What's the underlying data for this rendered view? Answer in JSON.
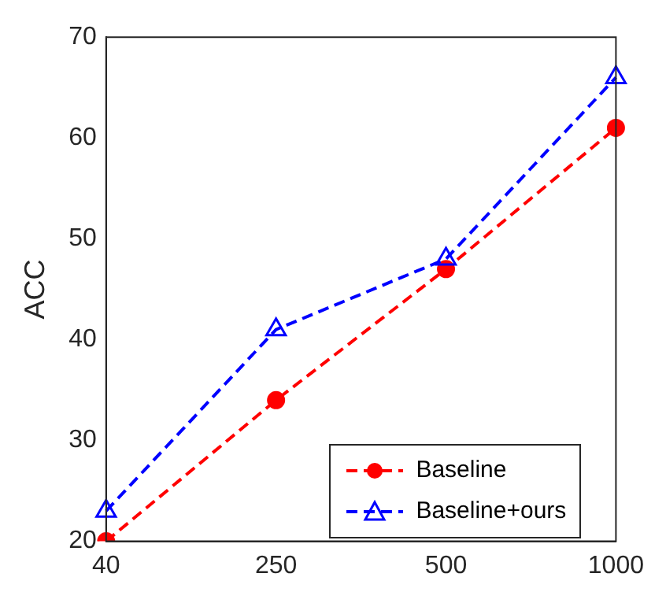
{
  "chart_data": {
    "type": "line",
    "ylabel": "ACC",
    "categories": [
      "40",
      "250",
      "500",
      "1000"
    ],
    "ylim": [
      20,
      70
    ],
    "yticks": [
      20,
      30,
      40,
      50,
      60,
      70
    ],
    "grid": false,
    "legend": "bottom right",
    "series": [
      {
        "name": "Baseline",
        "color": "#ff0000",
        "values": [
          20,
          34,
          47,
          61
        ],
        "marker": "circle",
        "line_style": "dashed"
      },
      {
        "name": "Baseline+ours",
        "color": "#0000ff",
        "values": [
          23,
          41,
          48,
          66
        ],
        "marker": "triangle",
        "line_style": "dashed"
      }
    ]
  }
}
